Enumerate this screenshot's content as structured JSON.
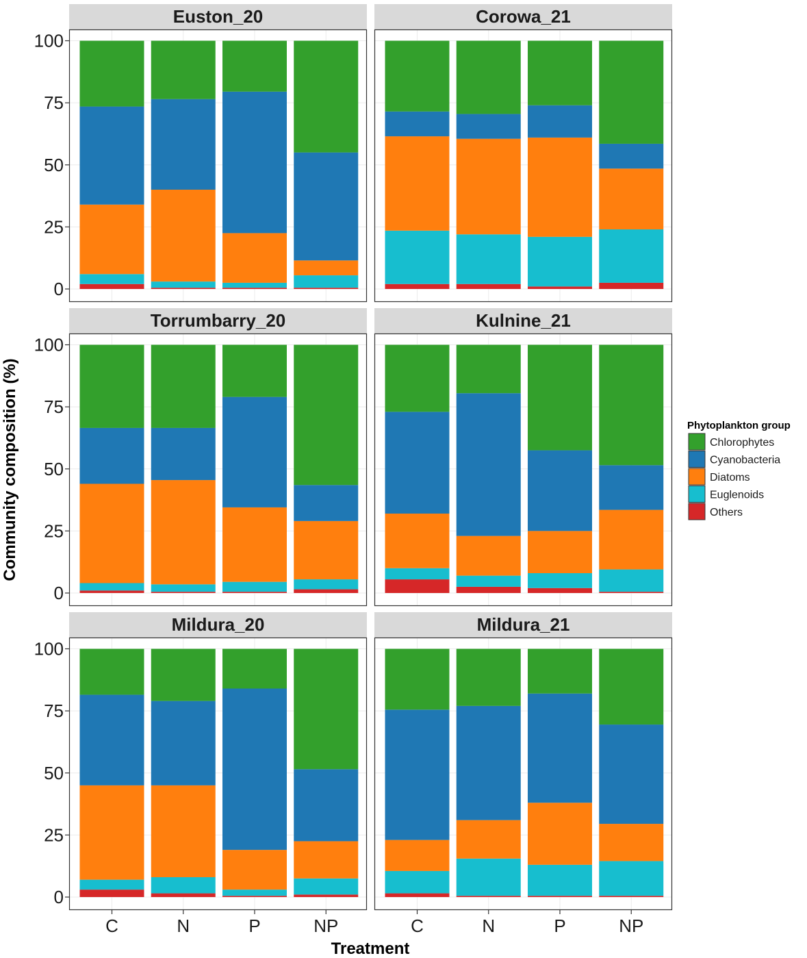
{
  "chart_data": {
    "type": "bar",
    "stacked": true,
    "xlabel": "Treatment",
    "ylabel": "Community composition (%)",
    "categories": [
      "C",
      "N",
      "P",
      "NP"
    ],
    "yticks": [
      0,
      25,
      50,
      75,
      100
    ],
    "ylim": [
      0,
      100
    ],
    "legend": {
      "title": "Phytoplankton group",
      "position": "right",
      "entries": [
        "Chlorophytes",
        "Cyanobacteria",
        "Diatoms",
        "Euglenoids",
        "Others"
      ]
    },
    "colors": {
      "Chlorophytes": "#33a02c",
      "Cyanobacteria": "#1f78b4",
      "Diatoms": "#ff7f0e",
      "Euglenoids": "#17becf",
      "Others": "#d62728"
    },
    "stack_order": [
      "Others",
      "Euglenoids",
      "Diatoms",
      "Cyanobacteria",
      "Chlorophytes"
    ],
    "panels": [
      {
        "title": "Euston_20",
        "series": [
          {
            "name": "Others",
            "values": [
              2,
              0.5,
              0.5,
              0.5
            ]
          },
          {
            "name": "Euglenoids",
            "values": [
              4,
              2.5,
              2,
              5
            ]
          },
          {
            "name": "Diatoms",
            "values": [
              28,
              37,
              20,
              6
            ]
          },
          {
            "name": "Cyanobacteria",
            "values": [
              39.5,
              36.5,
              57,
              43.5
            ]
          },
          {
            "name": "Chlorophytes",
            "values": [
              26.5,
              23.5,
              20.5,
              45
            ]
          }
        ]
      },
      {
        "title": "Corowa_21",
        "series": [
          {
            "name": "Others",
            "values": [
              2,
              2,
              1,
              2.5
            ]
          },
          {
            "name": "Euglenoids",
            "values": [
              21.5,
              20,
              20,
              21.5
            ]
          },
          {
            "name": "Diatoms",
            "values": [
              38,
              38.5,
              40,
              24.5
            ]
          },
          {
            "name": "Cyanobacteria",
            "values": [
              10,
              10,
              13,
              10
            ]
          },
          {
            "name": "Chlorophytes",
            "values": [
              28.5,
              29.5,
              26,
              41.5
            ]
          }
        ]
      },
      {
        "title": "Torrumbarry_20",
        "series": [
          {
            "name": "Others",
            "values": [
              1,
              0.5,
              0.5,
              1.5
            ]
          },
          {
            "name": "Euglenoids",
            "values": [
              3,
              3,
              4,
              4
            ]
          },
          {
            "name": "Diatoms",
            "values": [
              40,
              42,
              30,
              23.5
            ]
          },
          {
            "name": "Cyanobacteria",
            "values": [
              22.5,
              21,
              44.5,
              14.5
            ]
          },
          {
            "name": "Chlorophytes",
            "values": [
              33.5,
              33.5,
              21,
              56.5
            ]
          }
        ]
      },
      {
        "title": "Kulnine_21",
        "series": [
          {
            "name": "Others",
            "values": [
              5.5,
              2.5,
              2,
              0.5
            ]
          },
          {
            "name": "Euglenoids",
            "values": [
              4.5,
              4.5,
              6,
              9
            ]
          },
          {
            "name": "Diatoms",
            "values": [
              22,
              16,
              17,
              24
            ]
          },
          {
            "name": "Cyanobacteria",
            "values": [
              41,
              57.5,
              32.5,
              18
            ]
          },
          {
            "name": "Chlorophytes",
            "values": [
              27,
              19.5,
              42.5,
              48.5
            ]
          }
        ]
      },
      {
        "title": "Mildura_20",
        "series": [
          {
            "name": "Others",
            "values": [
              3,
              1.5,
              0.5,
              1
            ]
          },
          {
            "name": "Euglenoids",
            "values": [
              4,
              6.5,
              2.5,
              6.5
            ]
          },
          {
            "name": "Diatoms",
            "values": [
              38,
              37,
              16,
              15
            ]
          },
          {
            "name": "Cyanobacteria",
            "values": [
              36.5,
              34,
              65,
              29
            ]
          },
          {
            "name": "Chlorophytes",
            "values": [
              18.5,
              21,
              16,
              48.5
            ]
          }
        ]
      },
      {
        "title": "Mildura_21",
        "series": [
          {
            "name": "Others",
            "values": [
              1.5,
              0.5,
              0.5,
              0.5
            ]
          },
          {
            "name": "Euglenoids",
            "values": [
              9,
              15,
              12.5,
              14
            ]
          },
          {
            "name": "Diatoms",
            "values": [
              12.5,
              15.5,
              25,
              15
            ]
          },
          {
            "name": "Cyanobacteria",
            "values": [
              52.5,
              46,
              44,
              40
            ]
          },
          {
            "name": "Chlorophytes",
            "values": [
              24.5,
              23,
              18,
              30.5
            ]
          }
        ]
      }
    ]
  }
}
